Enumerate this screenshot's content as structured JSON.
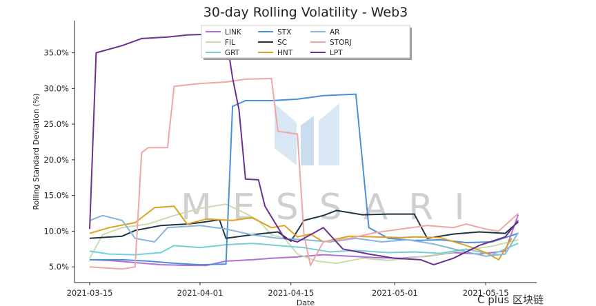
{
  "chart_data": {
    "type": "line",
    "title": "30-day Rolling Volatility - Web3",
    "xlabel": "Date",
    "ylabel": "Rolling Standard Deviation (%)",
    "x_ticks": [
      "2021-03-15",
      "2021-04-01",
      "2021-04-15",
      "2021-05-01",
      "2021-05-15"
    ],
    "y_ticks": [
      "5.0%",
      "10.0%",
      "15.0%",
      "20.0%",
      "25.0%",
      "30.0%",
      "35.0%"
    ],
    "x_range": [
      "2021-03-15",
      "2021-05-22"
    ],
    "ylim": [
      2.8,
      39.5
    ],
    "grid": false,
    "legend_position": "top-center",
    "watermark": "MESSARI",
    "corner_watermark": "C plus 区块链",
    "series": [
      {
        "name": "LINK",
        "color": "#b36fd4",
        "points": [
          [
            "2021-03-15",
            6.0
          ],
          [
            "2021-03-18",
            5.9
          ],
          [
            "2021-03-22",
            5.6
          ],
          [
            "2021-03-26",
            5.3
          ],
          [
            "2021-03-30",
            5.2
          ],
          [
            "2021-04-02",
            5.2
          ],
          [
            "2021-04-05",
            5.8
          ],
          [
            "2021-04-09",
            6.0
          ],
          [
            "2021-04-12",
            6.2
          ],
          [
            "2021-04-16",
            6.4
          ],
          [
            "2021-04-20",
            6.7
          ],
          [
            "2021-04-24",
            6.5
          ],
          [
            "2021-04-28",
            6.3
          ],
          [
            "2021-05-02",
            6.2
          ],
          [
            "2021-05-06",
            6.5
          ],
          [
            "2021-05-10",
            7.0
          ],
          [
            "2021-05-14",
            6.8
          ],
          [
            "2021-05-18",
            7.2
          ],
          [
            "2021-05-20",
            12.3
          ]
        ]
      },
      {
        "name": "FIL",
        "color": "#c8dcae",
        "points": [
          [
            "2021-03-15",
            6.2
          ],
          [
            "2021-03-17",
            9.5
          ],
          [
            "2021-03-20",
            10.5
          ],
          [
            "2021-03-24",
            11.0
          ],
          [
            "2021-03-28",
            12.2
          ],
          [
            "2021-04-01",
            13.2
          ],
          [
            "2021-04-05",
            13.8
          ],
          [
            "2021-04-08",
            12.5
          ],
          [
            "2021-04-10",
            11.5
          ],
          [
            "2021-04-12",
            9.5
          ],
          [
            "2021-04-14",
            9.0
          ],
          [
            "2021-04-16",
            6.8
          ],
          [
            "2021-04-19",
            5.8
          ],
          [
            "2021-04-22",
            5.5
          ],
          [
            "2021-04-26",
            6.2
          ],
          [
            "2021-04-30",
            5.9
          ],
          [
            "2021-05-04",
            6.3
          ],
          [
            "2021-05-08",
            6.8
          ],
          [
            "2021-05-12",
            7.4
          ],
          [
            "2021-05-16",
            7.9
          ],
          [
            "2021-05-20",
            8.8
          ]
        ]
      },
      {
        "name": "GRT",
        "color": "#73d0d8",
        "points": [
          [
            "2021-03-15",
            7.2
          ],
          [
            "2021-03-18",
            6.8
          ],
          [
            "2021-03-22",
            6.7
          ],
          [
            "2021-03-26",
            7.0
          ],
          [
            "2021-03-28",
            8.0
          ],
          [
            "2021-04-01",
            7.7
          ],
          [
            "2021-04-05",
            8.1
          ],
          [
            "2021-04-09",
            8.3
          ],
          [
            "2021-04-13",
            8.0
          ],
          [
            "2021-04-17",
            7.7
          ],
          [
            "2021-04-21",
            7.1
          ],
          [
            "2021-04-25",
            7.3
          ],
          [
            "2021-04-30",
            7.0
          ],
          [
            "2021-05-04",
            7.1
          ],
          [
            "2021-05-08",
            6.9
          ],
          [
            "2021-05-12",
            7.5
          ],
          [
            "2021-05-16",
            6.7
          ],
          [
            "2021-05-20",
            8.3
          ]
        ]
      },
      {
        "name": "STX",
        "color": "#4a8fd9",
        "points": [
          [
            "2021-03-15",
            6.0
          ],
          [
            "2021-03-20",
            6.0
          ],
          [
            "2021-03-24",
            5.8
          ],
          [
            "2021-03-28",
            5.5
          ],
          [
            "2021-04-01",
            5.3
          ],
          [
            "2021-04-05",
            5.4
          ],
          [
            "2021-04-06",
            27.5
          ],
          [
            "2021-04-08",
            28.3
          ],
          [
            "2021-04-12",
            28.3
          ],
          [
            "2021-04-16",
            28.5
          ],
          [
            "2021-04-20",
            29.0
          ],
          [
            "2021-04-25",
            29.2
          ],
          [
            "2021-04-27",
            10.5
          ],
          [
            "2021-04-30",
            9.0
          ],
          [
            "2021-05-04",
            8.7
          ],
          [
            "2021-05-08",
            8.8
          ],
          [
            "2021-05-12",
            8.4
          ],
          [
            "2021-05-16",
            8.5
          ],
          [
            "2021-05-20",
            9.7
          ]
        ]
      },
      {
        "name": "SC",
        "color": "#1f3340",
        "points": [
          [
            "2021-03-15",
            9.0
          ],
          [
            "2021-03-20",
            9.3
          ],
          [
            "2021-03-22",
            10.1
          ],
          [
            "2021-03-26",
            10.8
          ],
          [
            "2021-03-30",
            11.0
          ],
          [
            "2021-04-01",
            11.2
          ],
          [
            "2021-04-04",
            11.6
          ],
          [
            "2021-04-05",
            9.0
          ],
          [
            "2021-04-09",
            9.5
          ],
          [
            "2021-04-13",
            9.9
          ],
          [
            "2021-04-15",
            8.6
          ],
          [
            "2021-04-17",
            11.5
          ],
          [
            "2021-04-20",
            12.2
          ],
          [
            "2021-04-22",
            12.9
          ],
          [
            "2021-04-26",
            12.3
          ],
          [
            "2021-04-30",
            12.4
          ],
          [
            "2021-05-04",
            12.4
          ],
          [
            "2021-05-06",
            9.0
          ],
          [
            "2021-05-10",
            9.6
          ],
          [
            "2021-05-14",
            9.9
          ],
          [
            "2021-05-18",
            9.7
          ],
          [
            "2021-05-20",
            11.3
          ]
        ]
      },
      {
        "name": "HNT",
        "color": "#e0a020",
        "points": [
          [
            "2021-03-15",
            9.7
          ],
          [
            "2021-03-18",
            10.5
          ],
          [
            "2021-03-22",
            11.2
          ],
          [
            "2021-03-25",
            13.3
          ],
          [
            "2021-03-28",
            13.5
          ],
          [
            "2021-03-30",
            11.0
          ],
          [
            "2021-04-02",
            11.7
          ],
          [
            "2021-04-06",
            11.5
          ],
          [
            "2021-04-09",
            11.9
          ],
          [
            "2021-04-12",
            10.5
          ],
          [
            "2021-04-14",
            10.8
          ],
          [
            "2021-04-16",
            9.2
          ],
          [
            "2021-04-18",
            9.6
          ],
          [
            "2021-04-20",
            8.5
          ],
          [
            "2021-04-24",
            9.3
          ],
          [
            "2021-04-28",
            9.2
          ],
          [
            "2021-05-02",
            9.1
          ],
          [
            "2021-05-04",
            9.2
          ],
          [
            "2021-05-08",
            9.1
          ],
          [
            "2021-05-12",
            8.0
          ],
          [
            "2021-05-15",
            7.0
          ],
          [
            "2021-05-17",
            6.0
          ],
          [
            "2021-05-19",
            9.0
          ]
        ]
      },
      {
        "name": "AR",
        "color": "#86b4dc",
        "points": [
          [
            "2021-03-15",
            11.5
          ],
          [
            "2021-03-17",
            12.2
          ],
          [
            "2021-03-20",
            11.5
          ],
          [
            "2021-03-22",
            9.0
          ],
          [
            "2021-03-25",
            8.5
          ],
          [
            "2021-03-27",
            10.5
          ],
          [
            "2021-04-01",
            10.8
          ],
          [
            "2021-04-05",
            10.3
          ],
          [
            "2021-04-09",
            9.5
          ],
          [
            "2021-04-13",
            9.0
          ],
          [
            "2021-04-17",
            8.8
          ],
          [
            "2021-04-21",
            8.5
          ],
          [
            "2021-04-25",
            9.0
          ],
          [
            "2021-04-29",
            8.5
          ],
          [
            "2021-05-03",
            8.8
          ],
          [
            "2021-05-07",
            8.2
          ],
          [
            "2021-05-11",
            7.3
          ],
          [
            "2021-05-15",
            6.5
          ],
          [
            "2021-05-18",
            6.8
          ],
          [
            "2021-05-20",
            9.8
          ]
        ]
      },
      {
        "name": "STORJ",
        "color": "#eea6a6",
        "points": [
          [
            "2021-03-15",
            5.0
          ],
          [
            "2021-03-20",
            4.7
          ],
          [
            "2021-03-22",
            5.0
          ],
          [
            "2021-03-23",
            21.0
          ],
          [
            "2021-03-24",
            21.7
          ],
          [
            "2021-03-27",
            21.7
          ],
          [
            "2021-03-28",
            30.3
          ],
          [
            "2021-04-01",
            30.7
          ],
          [
            "2021-04-05",
            30.9
          ],
          [
            "2021-04-08",
            31.3
          ],
          [
            "2021-04-12",
            31.4
          ],
          [
            "2021-04-13",
            24.0
          ],
          [
            "2021-04-16",
            23.6
          ],
          [
            "2021-04-17",
            9.5
          ],
          [
            "2021-04-18",
            5.2
          ],
          [
            "2021-04-20",
            8.5
          ],
          [
            "2021-04-24",
            9.0
          ],
          [
            "2021-04-28",
            9.8
          ],
          [
            "2021-05-02",
            10.3
          ],
          [
            "2021-05-06",
            10.8
          ],
          [
            "2021-05-10",
            10.5
          ],
          [
            "2021-05-12",
            11.0
          ],
          [
            "2021-05-15",
            10.3
          ],
          [
            "2021-05-17",
            10.0
          ],
          [
            "2021-05-20",
            12.5
          ]
        ]
      },
      {
        "name": "LPT",
        "color": "#6b2f90",
        "points": [
          [
            "2021-03-15",
            10.3
          ],
          [
            "2021-03-16",
            35.0
          ],
          [
            "2021-03-20",
            36.0
          ],
          [
            "2021-03-23",
            37.0
          ],
          [
            "2021-03-27",
            37.2
          ],
          [
            "2021-03-30",
            37.5
          ],
          [
            "2021-04-02",
            37.6
          ],
          [
            "2021-04-05",
            37.5
          ],
          [
            "2021-04-06",
            31.5
          ],
          [
            "2021-04-07",
            27.0
          ],
          [
            "2021-04-08",
            17.3
          ],
          [
            "2021-04-10",
            17.2
          ],
          [
            "2021-04-11",
            13.5
          ],
          [
            "2021-04-14",
            9.0
          ],
          [
            "2021-04-16",
            8.5
          ],
          [
            "2021-04-20",
            10.5
          ],
          [
            "2021-04-23",
            7.5
          ],
          [
            "2021-04-27",
            6.8
          ],
          [
            "2021-05-01",
            6.2
          ],
          [
            "2021-05-05",
            6.0
          ],
          [
            "2021-05-07",
            5.3
          ],
          [
            "2021-05-10",
            6.2
          ],
          [
            "2021-05-14",
            8.0
          ],
          [
            "2021-05-18",
            9.2
          ],
          [
            "2021-05-20",
            11.5
          ]
        ]
      }
    ]
  }
}
